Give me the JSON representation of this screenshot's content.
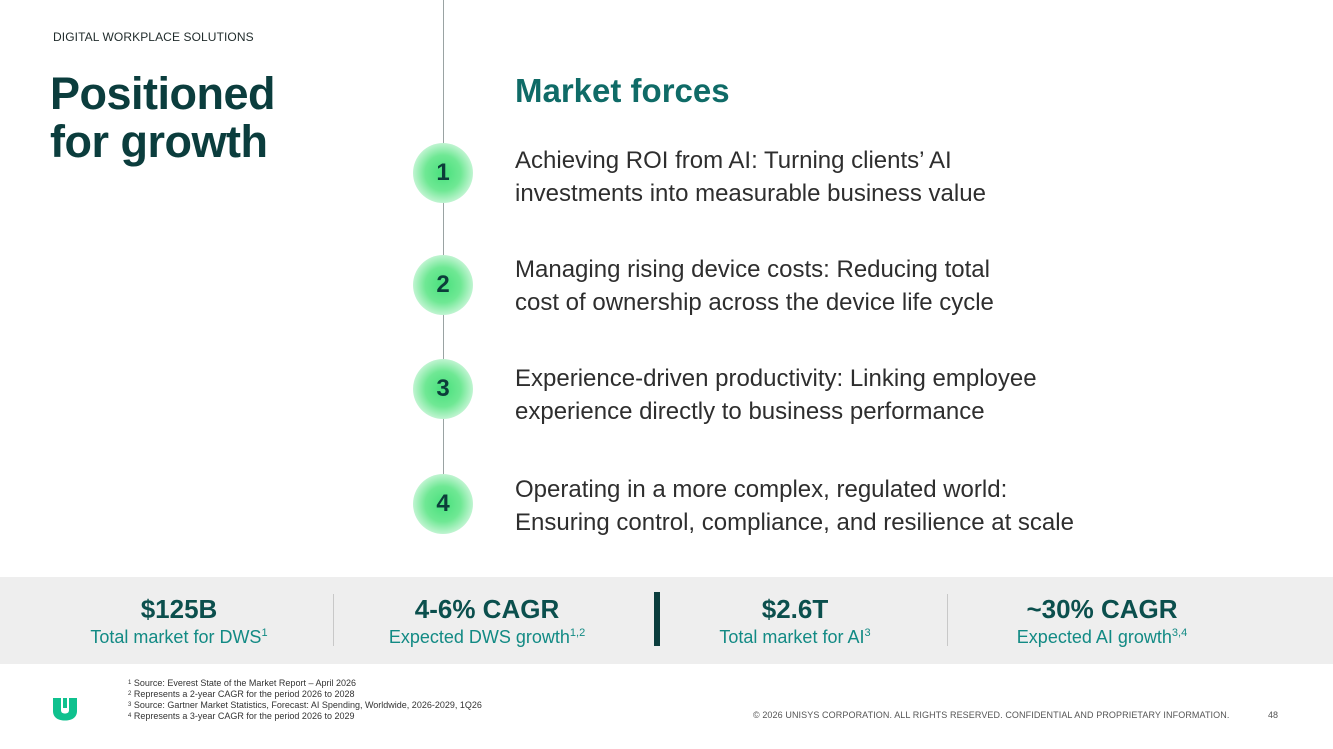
{
  "header": {
    "section_label": "DIGITAL WORKPLACE SOLUTIONS",
    "title_lines": [
      "Positioned",
      "for growth"
    ]
  },
  "market_forces": {
    "heading": "Market forces",
    "items": [
      {
        "number": "1",
        "lines": [
          "Achieving ROI from AI: Turning clients’ AI",
          "investments into measurable business value"
        ]
      },
      {
        "number": "2",
        "lines": [
          "Managing rising device costs: Reducing total",
          "cost of ownership across the device life cycle"
        ]
      },
      {
        "number": "3",
        "lines": [
          "Experience-driven productivity: Linking employee",
          "experience directly to business performance"
        ]
      },
      {
        "number": "4",
        "lines": [
          "Operating in a more complex, regulated world:",
          "Ensuring control, compliance, and resilience at scale"
        ]
      }
    ]
  },
  "stats": [
    {
      "value": "$125B",
      "label": "Total market for DWS",
      "sup": "1"
    },
    {
      "value": "4-6% CAGR",
      "label": "Expected DWS growth",
      "sup": "1,2"
    },
    {
      "value": "$2.6T",
      "label": "Total market for AI",
      "sup": "3"
    },
    {
      "value": "~30% CAGR",
      "label": "Expected AI growth",
      "sup": "3,4"
    }
  ],
  "footnotes": [
    {
      "sup": "1",
      "text": "Source: Everest State of the Market Report – April 2026"
    },
    {
      "sup": "2",
      "text": "Represents a 2-year CAGR for the period 2026 to 2028"
    },
    {
      "sup": "3",
      "text": "Source: Gartner Market Statistics, Forecast: AI Spending, Worldwide, 2026-2029, 1Q26"
    },
    {
      "sup": "4",
      "text": "Represents a 3-year CAGR for the period 2026 to 2029"
    }
  ],
  "footer": {
    "copyright": "© 2026 UNISYS CORPORATION. ALL RIGHTS RESERVED. CONFIDENTIAL AND PROPRIETARY INFORMATION.",
    "page_number": "48"
  },
  "colors": {
    "title": "#0b3d3d",
    "accent_teal": "#0f6b67",
    "badge_green": "#48e07c",
    "stat_value": "#0b4f4d",
    "stat_label": "#128a84",
    "logo_green": "#0fc18e"
  },
  "icons": {
    "logo": "unisys-u-logo"
  }
}
